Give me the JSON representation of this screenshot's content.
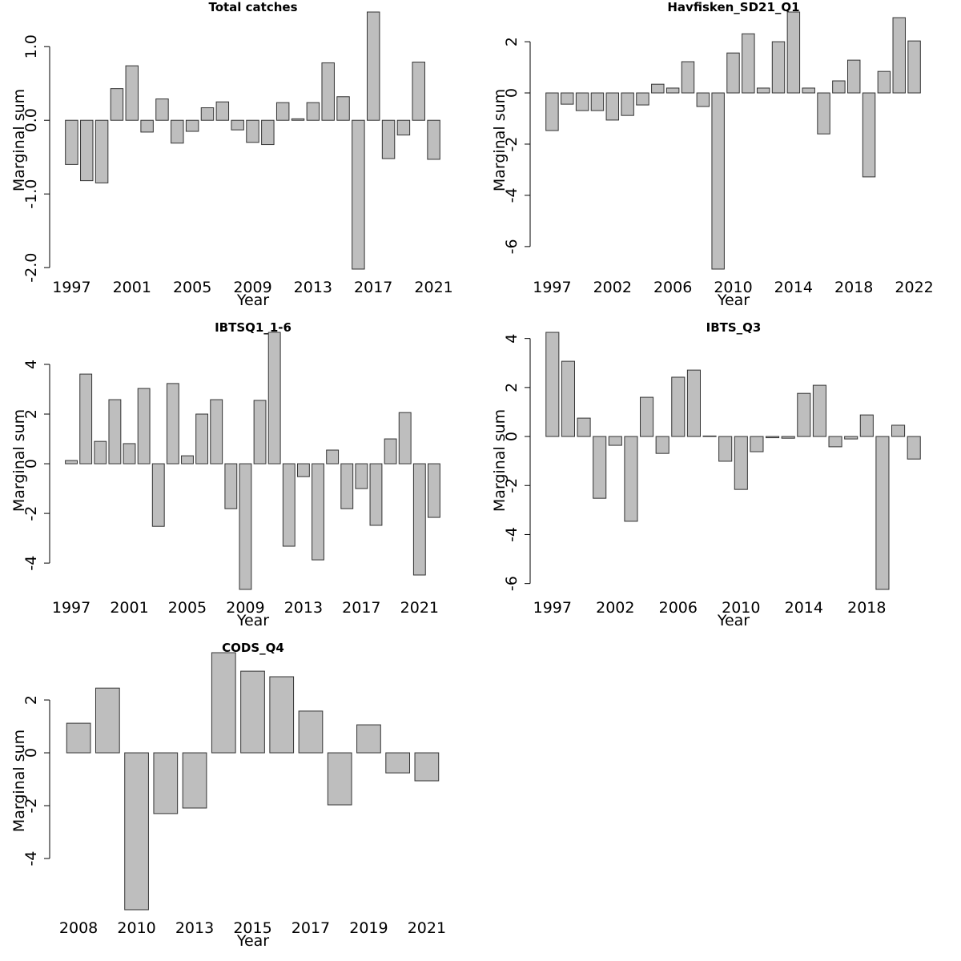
{
  "chart_data": [
    {
      "type": "bar",
      "title": "Total catches",
      "xlabel": "Year",
      "ylabel": "Marginal sum",
      "color": "#bebebe",
      "categories": [
        1997,
        null,
        null,
        null,
        2001,
        null,
        null,
        null,
        2005,
        null,
        null,
        null,
        2009,
        null,
        null,
        null,
        2013,
        null,
        null,
        null,
        2017,
        null,
        null,
        null,
        2021
      ],
      "values": [
        -0.6,
        -0.82,
        -0.85,
        0.43,
        0.74,
        -0.16,
        0.29,
        -0.31,
        -0.15,
        0.17,
        0.25,
        -0.13,
        -0.3,
        -0.33,
        0.24,
        0.02,
        0.24,
        0.78,
        0.32,
        -2.02,
        1.47,
        -0.52,
        -0.2,
        0.79,
        -0.53
      ],
      "ylim": [
        -2.02,
        1.47
      ],
      "yticks": [
        {
          "value": 1,
          "label": "1.0"
        },
        {
          "value": 0,
          "label": "0.0"
        },
        {
          "value": -1,
          "label": "-1.0"
        },
        {
          "value": -2,
          "label": "-2.0"
        }
      ]
    },
    {
      "type": "bar",
      "title": "Havfisken_SD21_Q1",
      "xlabel": "Year",
      "ylabel": "Marginal sum",
      "color": "#bebebe",
      "categories": [
        1997,
        null,
        null,
        null,
        2002,
        null,
        null,
        null,
        2006,
        null,
        null,
        null,
        2010,
        null,
        null,
        null,
        2014,
        null,
        null,
        null,
        2018,
        null,
        null,
        null,
        2022
      ],
      "values": [
        -1.47,
        -0.44,
        -0.69,
        -0.69,
        -1.06,
        -0.88,
        -0.47,
        0.34,
        0.19,
        1.22,
        -0.53,
        -6.88,
        1.56,
        2.31,
        0.19,
        2.0,
        3.16,
        0.19,
        -1.6,
        0.47,
        1.28,
        -3.28,
        0.84,
        2.94,
        2.03
      ],
      "ylim": [
        -6.88,
        3.16
      ],
      "yticks": [
        2,
        0,
        -2,
        -4,
        -6
      ]
    },
    {
      "type": "bar",
      "title": "IBTSQ1_1-6",
      "xlabel": "Year",
      "ylabel": "Marginal sum",
      "color": "#bebebe",
      "categories": [
        1997,
        null,
        null,
        null,
        2001,
        null,
        null,
        null,
        2005,
        null,
        null,
        null,
        2009,
        null,
        null,
        null,
        2013,
        null,
        null,
        null,
        2017,
        null,
        null,
        null,
        2021,
        null
      ],
      "values": [
        0.13,
        3.61,
        0.9,
        2.58,
        0.81,
        3.03,
        -2.52,
        3.23,
        0.32,
        2.0,
        2.58,
        -1.81,
        -5.06,
        2.55,
        5.29,
        -3.32,
        -0.52,
        -3.87,
        0.55,
        -1.81,
        -1.0,
        -2.48,
        1.0,
        2.06,
        -4.48,
        -2.16
      ],
      "ylim": [
        -5.06,
        5.29
      ],
      "yticks": [
        4,
        2,
        0,
        -2,
        -4
      ]
    },
    {
      "type": "bar",
      "title": "IBTS_Q3",
      "xlabel": "Year",
      "ylabel": "Marginal sum",
      "color": "#bebebe",
      "categories": [
        1997,
        null,
        null,
        null,
        2002,
        null,
        null,
        null,
        2006,
        null,
        null,
        null,
        2010,
        null,
        null,
        null,
        2014,
        null,
        null,
        null,
        2018,
        null,
        null,
        null
      ],
      "values": [
        4.25,
        3.07,
        0.75,
        -2.52,
        -0.36,
        -3.46,
        1.6,
        -0.69,
        2.42,
        2.71,
        0.02,
        -1.01,
        -2.16,
        -0.62,
        -0.05,
        -0.07,
        1.76,
        2.09,
        -0.42,
        -0.1,
        0.88,
        -6.24,
        0.46,
        -0.92
      ],
      "ylim": [
        -6.24,
        4.25
      ],
      "yticks": [
        4,
        2,
        0,
        -2,
        -4,
        -6
      ]
    },
    {
      "type": "bar",
      "title": "CODS_Q4",
      "xlabel": "Year",
      "ylabel": "Marginal sum",
      "color": "#bebebe",
      "categories": [
        2008,
        null,
        2010,
        null,
        2013,
        null,
        2015,
        null,
        2017,
        null,
        2019,
        null,
        2021
      ],
      "values": [
        1.12,
        2.45,
        -5.94,
        -2.3,
        -2.09,
        3.79,
        3.09,
        2.88,
        1.58,
        -1.97,
        1.06,
        -0.76,
        -1.06
      ],
      "ylim": [
        -5.94,
        3.79
      ],
      "yticks": [
        2,
        0,
        -2,
        -4
      ]
    }
  ]
}
